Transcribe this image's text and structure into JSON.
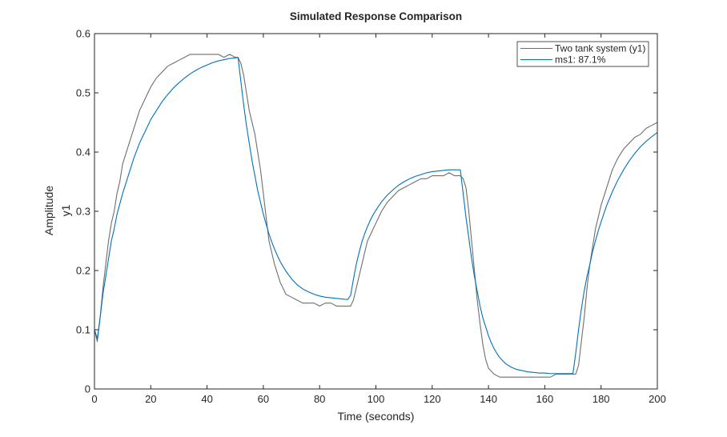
{
  "chart_data": {
    "type": "line",
    "title": "Simulated Response Comparison",
    "xlabel": "Time (seconds)",
    "ylabel": "Amplitude",
    "ylabel_channel": "y1",
    "xlim": [
      0,
      200
    ],
    "ylim": [
      0,
      0.6
    ],
    "xticks": [
      0,
      20,
      40,
      60,
      80,
      100,
      120,
      140,
      160,
      180,
      200
    ],
    "xtick_labels": [
      "0",
      "20",
      "40",
      "60",
      "80",
      "100",
      "120",
      "140",
      "160",
      "180",
      "200"
    ],
    "yticks": [
      0,
      0.1,
      0.2,
      0.3,
      0.4,
      0.5,
      0.6
    ],
    "ytick_labels": [
      "0",
      "0.1",
      "0.2",
      "0.3",
      "0.4",
      "0.5",
      "0.6"
    ],
    "grid": false,
    "legend_position": "top-right",
    "series": [
      {
        "name": "Two tank system (y1)",
        "color": "#6e6e6e",
        "x": [
          0,
          1,
          2,
          3,
          4,
          5,
          6,
          7,
          8,
          9,
          10,
          12,
          14,
          16,
          18,
          20,
          22,
          24,
          26,
          28,
          30,
          32,
          34,
          36,
          38,
          40,
          42,
          44,
          46,
          48,
          50,
          51,
          52,
          53,
          54,
          55,
          56,
          57,
          58,
          59,
          60,
          61,
          62,
          63,
          64,
          65,
          66,
          67,
          68,
          70,
          72,
          74,
          76,
          78,
          80,
          82,
          84,
          86,
          88,
          90,
          91,
          92,
          93,
          94,
          95,
          96,
          97,
          98,
          100,
          102,
          104,
          106,
          108,
          110,
          112,
          114,
          116,
          118,
          120,
          122,
          124,
          126,
          128,
          130,
          131,
          132,
          133,
          134,
          135,
          136,
          137,
          138,
          139,
          140,
          141,
          142,
          144,
          146,
          148,
          150,
          152,
          154,
          156,
          158,
          160,
          162,
          164,
          166,
          168,
          170,
          171,
          172,
          173,
          174,
          175,
          176,
          177,
          178,
          179,
          180,
          182,
          184,
          186,
          188,
          190,
          192,
          194,
          196,
          198,
          200
        ],
        "values": [
          0.1,
          0.08,
          0.12,
          0.17,
          0.21,
          0.25,
          0.28,
          0.3,
          0.33,
          0.35,
          0.38,
          0.41,
          0.44,
          0.47,
          0.49,
          0.51,
          0.525,
          0.535,
          0.545,
          0.55,
          0.555,
          0.56,
          0.565,
          0.565,
          0.565,
          0.565,
          0.565,
          0.565,
          0.56,
          0.565,
          0.56,
          0.56,
          0.55,
          0.53,
          0.5,
          0.47,
          0.45,
          0.43,
          0.4,
          0.37,
          0.33,
          0.29,
          0.25,
          0.23,
          0.21,
          0.195,
          0.18,
          0.17,
          0.16,
          0.155,
          0.15,
          0.145,
          0.145,
          0.145,
          0.14,
          0.145,
          0.145,
          0.14,
          0.14,
          0.14,
          0.14,
          0.15,
          0.17,
          0.19,
          0.21,
          0.23,
          0.25,
          0.26,
          0.28,
          0.3,
          0.315,
          0.325,
          0.335,
          0.34,
          0.345,
          0.35,
          0.355,
          0.355,
          0.36,
          0.36,
          0.36,
          0.365,
          0.36,
          0.36,
          0.355,
          0.34,
          0.3,
          0.25,
          0.2,
          0.15,
          0.11,
          0.075,
          0.05,
          0.035,
          0.03,
          0.025,
          0.02,
          0.02,
          0.02,
          0.02,
          0.02,
          0.02,
          0.02,
          0.02,
          0.02,
          0.02,
          0.025,
          0.025,
          0.025,
          0.025,
          0.025,
          0.04,
          0.08,
          0.12,
          0.17,
          0.21,
          0.24,
          0.27,
          0.29,
          0.31,
          0.34,
          0.37,
          0.39,
          0.405,
          0.415,
          0.425,
          0.43,
          0.44,
          0.445,
          0.45
        ]
      },
      {
        "name": "ms1: 87.1%",
        "color": "#0072bd",
        "x": [
          0,
          1,
          2,
          3,
          4,
          5,
          6,
          7,
          8,
          10,
          12,
          14,
          16,
          18,
          20,
          22,
          24,
          26,
          28,
          30,
          32,
          34,
          36,
          38,
          40,
          42,
          44,
          46,
          48,
          50,
          51,
          52,
          53,
          54,
          55,
          56,
          57,
          58,
          59,
          60,
          61,
          62,
          63,
          64,
          65,
          66,
          67,
          68,
          70,
          72,
          74,
          76,
          78,
          80,
          82,
          84,
          86,
          88,
          90,
          91,
          92,
          93,
          94,
          95,
          96,
          97,
          98,
          99,
          100,
          102,
          104,
          106,
          108,
          110,
          112,
          114,
          116,
          118,
          120,
          122,
          124,
          126,
          128,
          130,
          131,
          132,
          133,
          134,
          135,
          136,
          137,
          138,
          139,
          140,
          141,
          142,
          143,
          144,
          146,
          148,
          150,
          152,
          154,
          156,
          158,
          160,
          162,
          164,
          166,
          168,
          170,
          171,
          172,
          173,
          174,
          175,
          176,
          177,
          178,
          179,
          180,
          182,
          184,
          186,
          188,
          190,
          192,
          194,
          196,
          198,
          200
        ],
        "values": [
          0.1,
          0.085,
          0.12,
          0.16,
          0.19,
          0.22,
          0.25,
          0.27,
          0.295,
          0.33,
          0.36,
          0.39,
          0.415,
          0.435,
          0.455,
          0.47,
          0.485,
          0.497,
          0.508,
          0.517,
          0.525,
          0.532,
          0.538,
          0.543,
          0.547,
          0.551,
          0.554,
          0.556,
          0.558,
          0.559,
          0.56,
          0.52,
          0.48,
          0.445,
          0.415,
          0.385,
          0.36,
          0.335,
          0.315,
          0.295,
          0.278,
          0.262,
          0.248,
          0.236,
          0.225,
          0.215,
          0.207,
          0.199,
          0.186,
          0.176,
          0.169,
          0.164,
          0.16,
          0.157,
          0.155,
          0.154,
          0.153,
          0.152,
          0.151,
          0.158,
          0.185,
          0.21,
          0.23,
          0.248,
          0.262,
          0.274,
          0.285,
          0.294,
          0.302,
          0.316,
          0.327,
          0.336,
          0.344,
          0.35,
          0.355,
          0.359,
          0.362,
          0.365,
          0.367,
          0.368,
          0.369,
          0.37,
          0.37,
          0.37,
          0.33,
          0.29,
          0.255,
          0.22,
          0.19,
          0.165,
          0.14,
          0.12,
          0.105,
          0.09,
          0.078,
          0.068,
          0.06,
          0.053,
          0.043,
          0.037,
          0.033,
          0.031,
          0.029,
          0.028,
          0.027,
          0.027,
          0.026,
          0.026,
          0.026,
          0.026,
          0.026,
          0.06,
          0.1,
          0.135,
          0.165,
          0.19,
          0.21,
          0.232,
          0.25,
          0.267,
          0.282,
          0.31,
          0.333,
          0.353,
          0.37,
          0.385,
          0.398,
          0.409,
          0.418,
          0.426,
          0.433
        ]
      }
    ]
  }
}
